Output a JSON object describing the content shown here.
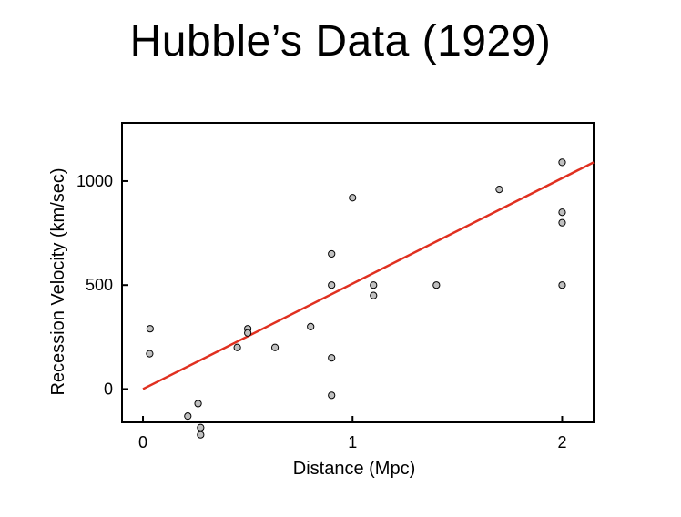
{
  "chart_data": {
    "type": "scatter",
    "title": "Hubble’s Data (1929)",
    "xlabel": "Distance (Mpc)",
    "ylabel": "Recession Velocity (km/sec)",
    "xlim": [
      -0.1,
      2.15
    ],
    "ylim": [
      -160,
      1280
    ],
    "xticks": [
      0,
      1,
      2
    ],
    "xtick_labels": [
      "0",
      "1",
      "2"
    ],
    "yticks": [
      0,
      500,
      1000
    ],
    "ytick_labels": [
      "0",
      "500",
      "1000"
    ],
    "grid": false,
    "legend": "none",
    "point_color": "#c0c0c0",
    "point_edge_color": "#000000",
    "fit_line_color": "#e03020",
    "series": [
      {
        "x": [
          0.032,
          0.034,
          0.214,
          0.263,
          0.275,
          0.275,
          0.45,
          0.5,
          0.5,
          0.63,
          0.8,
          0.9,
          0.9,
          0.9,
          0.9,
          1.0,
          1.1,
          1.1,
          1.4,
          1.7,
          2.0,
          2.0,
          2.0,
          2.0
        ],
        "y": [
          170,
          290,
          -130,
          -70,
          -185,
          -220,
          200,
          290,
          270,
          200,
          300,
          -30,
          650,
          150,
          500,
          920,
          450,
          500,
          500,
          960,
          500,
          850,
          800,
          1090
        ]
      }
    ],
    "fit_line": {
      "x": [
        0,
        2.15
      ],
      "y": [
        0,
        1090
      ]
    }
  }
}
